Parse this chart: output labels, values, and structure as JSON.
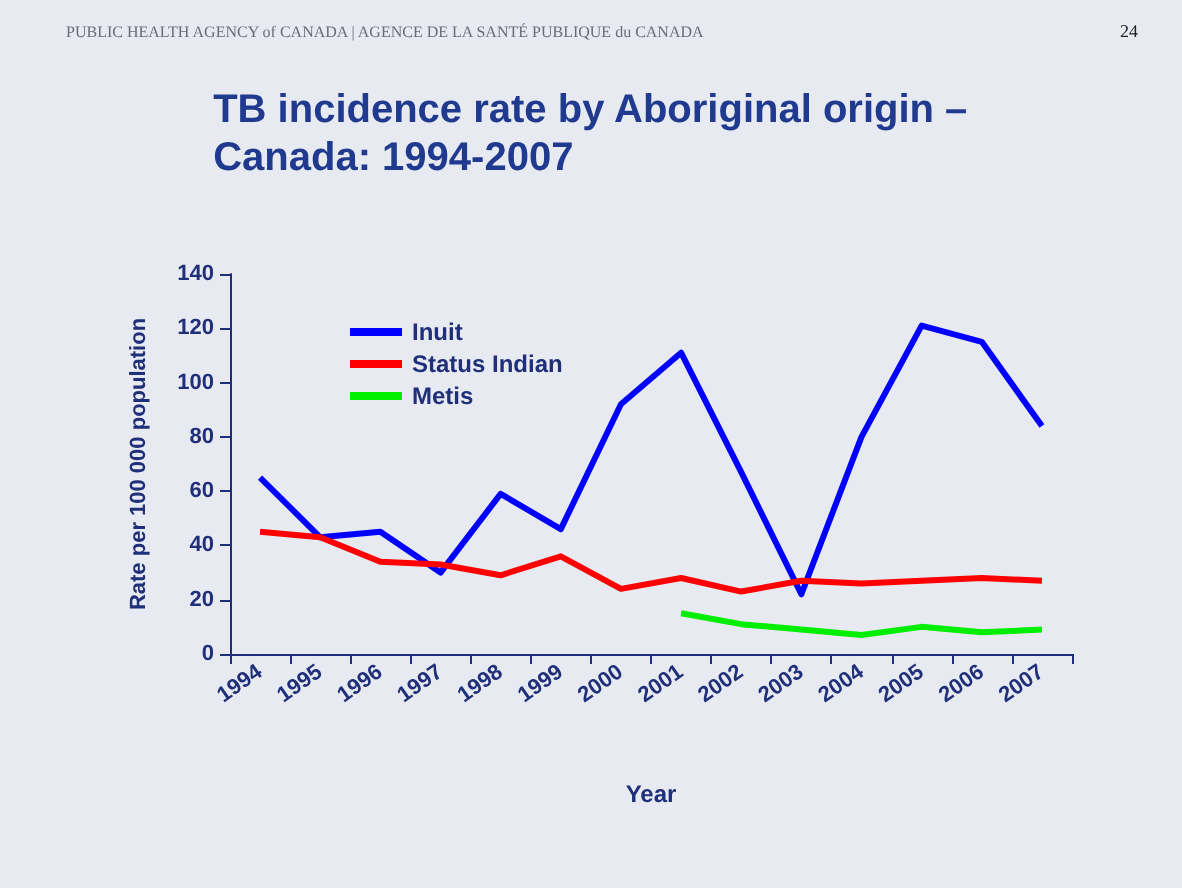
{
  "chart_data": {
    "type": "line",
    "title": "TB incidence rate by Aboriginal origin –\nCanada: 1994-2007",
    "xlabel": "Year",
    "ylabel": "Rate per 100 000 population",
    "annotations": [
      "PUBLIC HEALTH AGENCY of CANADA | AGENCE DE LA SANTÉ PUBLIQUE du CANADA",
      "24"
    ],
    "categories": [
      "1994",
      "1995",
      "1996",
      "1997",
      "1998",
      "1999",
      "2000",
      "2001",
      "2002",
      "2003",
      "2004",
      "2005",
      "2006",
      "2007"
    ],
    "series": [
      {
        "name": "Inuit",
        "color": "#0000ff",
        "values": [
          65,
          43,
          45,
          30,
          59,
          46,
          92,
          111,
          67,
          22,
          80,
          121,
          115,
          84
        ]
      },
      {
        "name": "Status Indian",
        "color": "#ff0000",
        "values": [
          45,
          43,
          34,
          33,
          29,
          36,
          24,
          28,
          23,
          27,
          26,
          27,
          28,
          27
        ]
      },
      {
        "name": "Metis",
        "color": "#00ee00",
        "values": [
          null,
          null,
          null,
          null,
          null,
          null,
          null,
          15,
          11,
          9,
          7,
          10,
          8,
          9
        ]
      }
    ],
    "ylim": [
      0,
      140
    ],
    "yticks": [
      0,
      20,
      40,
      60,
      80,
      100,
      120,
      140
    ],
    "grid": false,
    "legend": "top left",
    "marker": "none",
    "line_style": "solid"
  }
}
